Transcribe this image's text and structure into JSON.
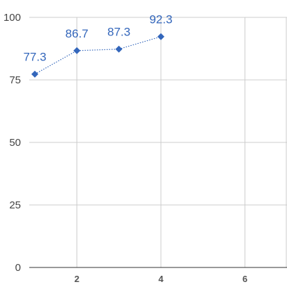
{
  "chart_data": {
    "type": "line",
    "title": "",
    "xlabel": "",
    "ylabel": "",
    "xlim": [
      1,
      7
    ],
    "ylim": [
      0,
      100
    ],
    "x_ticks": [
      2,
      4,
      6
    ],
    "y_ticks": [
      0,
      25,
      50,
      75,
      100
    ],
    "grid": true,
    "legend": "none",
    "series": [
      {
        "x": [
          1,
          2,
          3,
          4
        ],
        "values": [
          77.3,
          86.7,
          87.3,
          92.3
        ],
        "labels": [
          "77.3",
          "86.7",
          "87.3",
          "92.3"
        ],
        "color": "#3366bb",
        "marker": "diamond",
        "line_style": "dotted"
      }
    ]
  }
}
